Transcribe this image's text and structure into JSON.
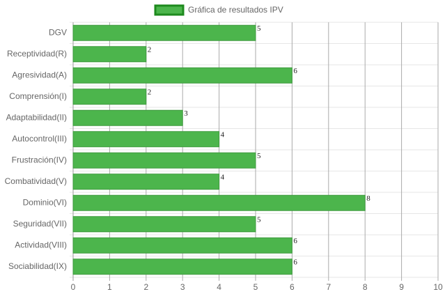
{
  "chart_data": {
    "type": "bar",
    "orientation": "horizontal",
    "categories": [
      "DGV",
      "Receptividad(R)",
      "Agresividad(A)",
      "Comprensión(I)",
      "Adaptabilidad(II)",
      "Autocontrol(III)",
      "Frustración(IV)",
      "Combatividad(V)",
      "Dominio(VI)",
      "Seguridad(VII)",
      "Actividad(VIII)",
      "Sociabilidad(IX)"
    ],
    "series": [
      {
        "name": "Gráfica de resultados IPV",
        "color": "#4cb54c",
        "values": [
          5,
          2,
          6,
          2,
          3,
          4,
          5,
          4,
          8,
          5,
          6,
          6
        ]
      }
    ],
    "xlim": [
      0,
      10
    ],
    "xticks": [
      0,
      1,
      2,
      3,
      4,
      5,
      6,
      7,
      8,
      9,
      10
    ],
    "grid": true,
    "legend": "top"
  }
}
